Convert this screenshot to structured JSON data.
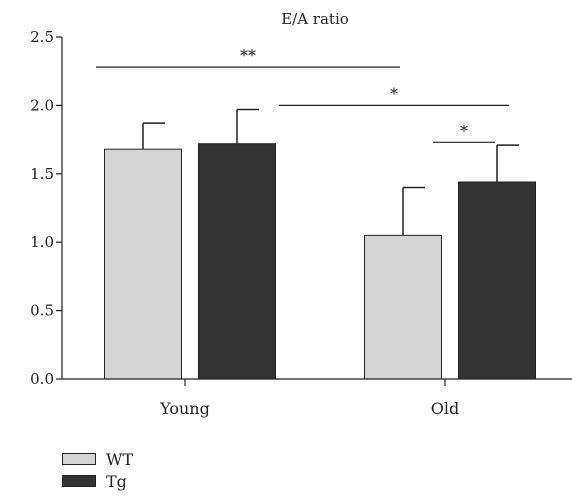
{
  "chart_data": {
    "type": "bar",
    "title": "E/A ratio",
    "categories": [
      "Young",
      "Old"
    ],
    "series": [
      {
        "name": "WT",
        "values": [
          1.68,
          1.05
        ],
        "errors": [
          0.19,
          0.35
        ],
        "color": "#d4d4d4"
      },
      {
        "name": "Tg",
        "values": [
          1.72,
          1.44
        ],
        "errors": [
          0.25,
          0.27
        ],
        "color": "#333333"
      }
    ],
    "ylim": [
      0,
      2.5
    ],
    "yticks": [
      "0.0",
      "0.5",
      "1.0",
      "1.5",
      "2.0",
      "2.5"
    ],
    "grid": false,
    "legend_position": "bottom-left",
    "significance": [
      {
        "label": "**",
        "y": 2.28,
        "from": "Young-WT",
        "to": "Old-WT"
      },
      {
        "label": "*",
        "y": 2.0,
        "from": "Young-Tg",
        "to": "Old-Tg"
      },
      {
        "label": "*",
        "y": 1.73,
        "from": "Old-WT",
        "to": "Old-Tg"
      }
    ]
  }
}
